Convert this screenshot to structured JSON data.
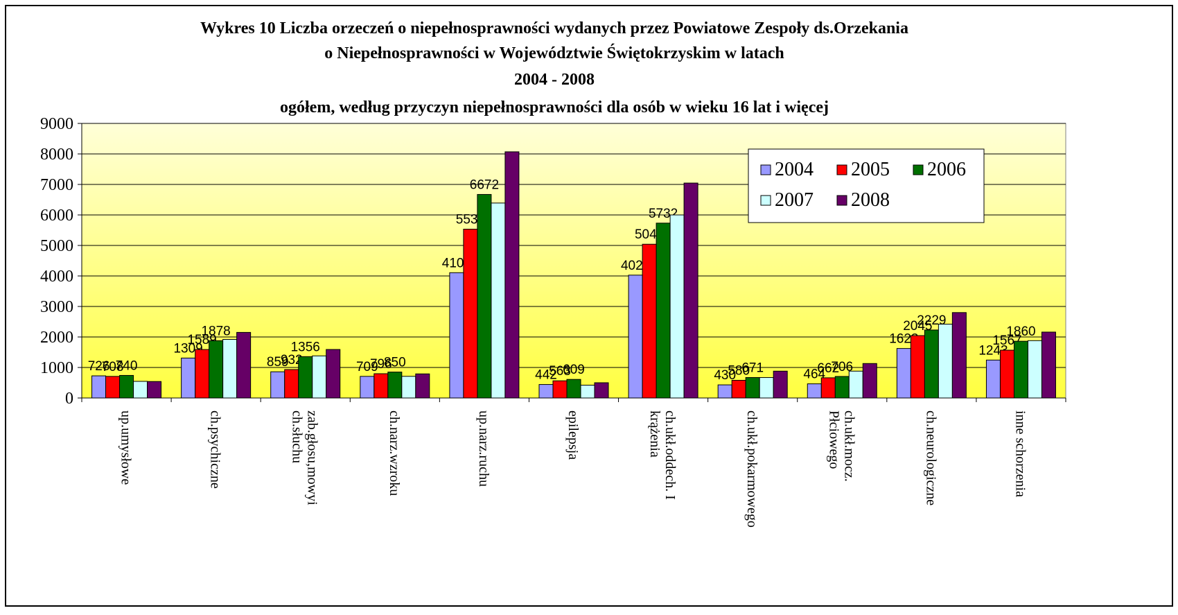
{
  "chart_data": {
    "type": "bar",
    "title": [
      "Wykres 10 Liczba orzeczeń o niepełnosprawności wydanych przez Powiatowe Zespoły ds.Orzekania",
      "o Niepełnosprawności w Województwie Świętokrzyskim w latach",
      "2004 - 2008",
      "ogółem, według przyczyn niepełnosprawności dla osób w wieku  16 lat i więcej"
    ],
    "categories": [
      "up.umysłowe",
      "ch.psychiczne",
      "zab.głosu,mowyi\nch.słuchu",
      "ch.narz.wzroku",
      "up.narz.ruchu",
      "epilepsja",
      "ch.ukł.oddech. I\nkrążenia",
      "ch.ukł.pokarmowego",
      "ch.ukł.mocz.\nPłciowego",
      "ch.neurologiczne",
      "inne schorzenia"
    ],
    "series": [
      {
        "name": "2004",
        "color": "#9999ff",
        "data_labels": true,
        "values": [
          726,
          1309,
          859,
          709,
          4107,
          442,
          4027,
          430,
          464,
          1623,
          1243
        ]
      },
      {
        "name": "2005",
        "color": "#ff0000",
        "data_labels": true,
        "values": [
          708,
          1589,
          932,
          796,
          5534,
          563,
          5040,
          580,
          662,
          2045,
          1567
        ]
      },
      {
        "name": "2006",
        "color": "#007000",
        "data_labels": true,
        "values": [
          740,
          1878,
          1356,
          850,
          6672,
          609,
          5732,
          671,
          706,
          2229,
          1860
        ]
      },
      {
        "name": "2007",
        "color": "#ccffff",
        "data_labels": false,
        "values": [
          545,
          1920,
          1380,
          710,
          6390,
          420,
          6000,
          670,
          880,
          2420,
          1880
        ]
      },
      {
        "name": "2008",
        "color": "#660066",
        "data_labels": false,
        "values": [
          540,
          2150,
          1590,
          790,
          8070,
          500,
          7045,
          880,
          1130,
          2800,
          2160
        ]
      }
    ],
    "ylim": [
      0,
      9000
    ],
    "yticks": [
      0,
      1000,
      2000,
      3000,
      4000,
      5000,
      6000,
      7000,
      8000,
      9000
    ],
    "grid": true,
    "legend": "upper right"
  }
}
